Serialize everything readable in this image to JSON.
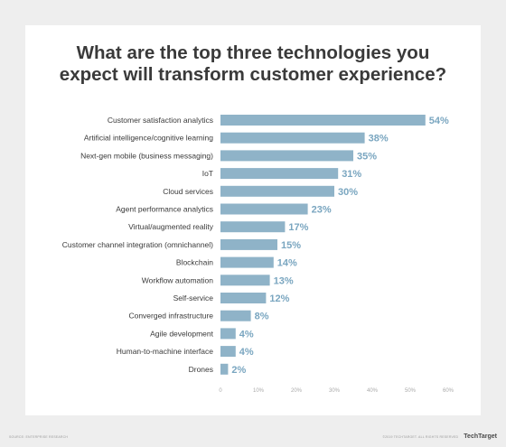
{
  "chart_data": {
    "type": "bar",
    "orientation": "horizontal",
    "title_lines": [
      "What are the top three technologies you",
      "expect will transform customer experience?"
    ],
    "categories": [
      "Customer satisfaction analytics",
      "Artificial intelligence/cognitive learning",
      "Next-gen mobile (business messaging)",
      "IoT",
      "Cloud services",
      "Agent performance analytics",
      "Virtual/augmented reality",
      "Customer channel integration (omnichannel)",
      "Blockchain",
      "Workflow automation",
      "Self-service",
      "Converged infrastructure",
      "Agile development",
      "Human-to-machine interface",
      "Drones"
    ],
    "values": [
      54,
      38,
      35,
      31,
      30,
      23,
      17,
      15,
      14,
      13,
      12,
      8,
      4,
      4,
      2
    ],
    "value_labels": [
      "54%",
      "38%",
      "35%",
      "31%",
      "30%",
      "23%",
      "17%",
      "15%",
      "14%",
      "13%",
      "12%",
      "8%",
      "4%",
      "4%",
      "2%"
    ],
    "xlim": [
      0,
      60
    ],
    "x_ticks": [
      0,
      10,
      20,
      30,
      40,
      50,
      60
    ],
    "x_tick_labels": [
      "0",
      "10%",
      "20%",
      "30%",
      "40%",
      "50%",
      "60%"
    ],
    "grid": false,
    "legend": "none",
    "bar_color": "#8fb3c8",
    "value_label_color": "#7aa6c0",
    "category_label_color": "#3a3a3a",
    "tick_label_color": "#aaaaaa"
  },
  "footer": {
    "source": "SOURCE: ENTERPRISE RESEARCH",
    "copyright": "©2019 TECHTARGET. ALL RIGHTS RESERVED",
    "brand": "TechTarget"
  }
}
